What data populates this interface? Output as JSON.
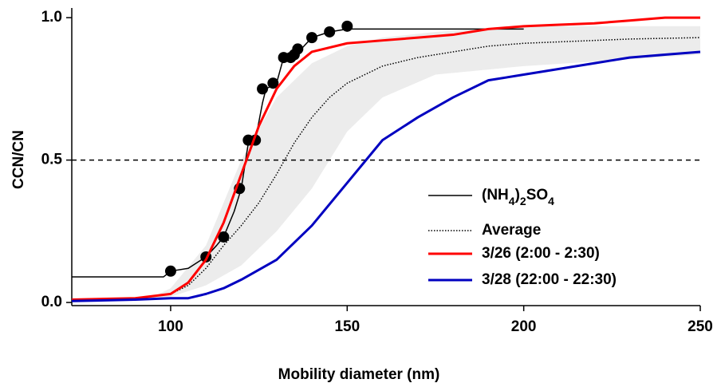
{
  "chart_data": {
    "type": "line",
    "xlabel": "Mobility diameter (nm)",
    "ylabel": "CCN/CN",
    "xlim": [
      72,
      250
    ],
    "ylim": [
      -0.011,
      1.034
    ],
    "xticks": [
      100,
      150,
      200,
      250
    ],
    "yticks": [
      {
        "value": 0,
        "label": "0.0"
      },
      0.5,
      {
        "value": 1,
        "label": "1.0"
      }
    ],
    "reference_line": 0.5,
    "band": {
      "color": "#ececec",
      "x": [
        95,
        100,
        110,
        120,
        130,
        140,
        150,
        160,
        175,
        200,
        225,
        250
      ],
      "upper": [
        0.02,
        0.05,
        0.2,
        0.5,
        0.72,
        0.84,
        0.9,
        0.93,
        0.95,
        0.97,
        0.97,
        0.97
      ],
      "lower": [
        0.01,
        0.02,
        0.06,
        0.13,
        0.25,
        0.4,
        0.6,
        0.72,
        0.8,
        0.83,
        0.85,
        0.87
      ]
    },
    "series": [
      {
        "name": "(NH4)2SO4",
        "color": "#000000",
        "line_style": "thin",
        "x": [
          72,
          98,
          100,
          105,
          110,
          113,
          115,
          118,
          120,
          122,
          124,
          126,
          127,
          130,
          132,
          135,
          137,
          140,
          145,
          150,
          200
        ],
        "values": [
          0.09,
          0.09,
          0.11,
          0.12,
          0.16,
          0.2,
          0.23,
          0.32,
          0.4,
          0.56,
          0.57,
          0.7,
          0.75,
          0.77,
          0.86,
          0.88,
          0.89,
          0.93,
          0.95,
          0.96,
          0.96
        ],
        "points_x": [
          100,
          110,
          115,
          119.5,
          122,
          124,
          126,
          129,
          132,
          134,
          135,
          136,
          140,
          145,
          150
        ],
        "points_values": [
          0.11,
          0.16,
          0.23,
          0.4,
          0.57,
          0.57,
          0.75,
          0.77,
          0.86,
          0.86,
          0.87,
          0.89,
          0.93,
          0.95,
          0.97
        ]
      },
      {
        "name": "Average",
        "color": "#000000",
        "line_style": "dotted",
        "x": [
          72,
          90,
          100,
          105,
          110,
          115,
          120,
          125,
          130,
          135,
          140,
          145,
          150,
          160,
          170,
          180,
          190,
          200,
          210,
          220,
          230,
          250
        ],
        "values": [
          0.01,
          0.015,
          0.03,
          0.06,
          0.12,
          0.2,
          0.27,
          0.35,
          0.45,
          0.56,
          0.65,
          0.72,
          0.77,
          0.83,
          0.86,
          0.88,
          0.9,
          0.91,
          0.915,
          0.92,
          0.925,
          0.93
        ]
      },
      {
        "name": "3/26 (2:00 - 2:30)",
        "color": "#ff0000",
        "line_style": "thick",
        "x": [
          72,
          90,
          100,
          105,
          110,
          115,
          120,
          125,
          130,
          135,
          140,
          150,
          160,
          170,
          180,
          190,
          200,
          210,
          220,
          230,
          240,
          250
        ],
        "values": [
          0.01,
          0.015,
          0.03,
          0.07,
          0.15,
          0.28,
          0.45,
          0.62,
          0.75,
          0.83,
          0.88,
          0.91,
          0.92,
          0.93,
          0.94,
          0.96,
          0.97,
          0.975,
          0.98,
          0.99,
          1.0,
          1.0
        ]
      },
      {
        "name": "3/28 (22:00 - 22:30)",
        "color": "#0000c0",
        "line_style": "thick",
        "x": [
          72,
          90,
          100,
          105,
          110,
          115,
          120,
          130,
          140,
          150,
          160,
          170,
          180,
          190,
          200,
          210,
          220,
          230,
          240,
          250
        ],
        "values": [
          0.005,
          0.01,
          0.015,
          0.015,
          0.03,
          0.05,
          0.08,
          0.15,
          0.27,
          0.42,
          0.57,
          0.65,
          0.72,
          0.78,
          0.8,
          0.82,
          0.84,
          0.86,
          0.87,
          0.88
        ]
      }
    ]
  }
}
